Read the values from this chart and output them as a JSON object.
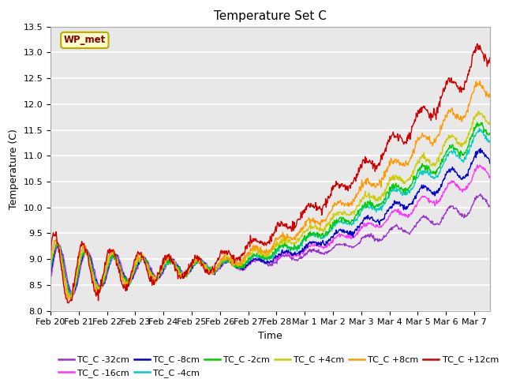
{
  "title": "Temperature Set C",
  "xlabel": "Time",
  "ylabel": "Temperature (C)",
  "ylim": [
    8.0,
    13.5
  ],
  "yticks": [
    8.0,
    8.5,
    9.0,
    9.5,
    10.0,
    10.5,
    11.0,
    11.5,
    12.0,
    12.5,
    13.0,
    13.5
  ],
  "background_color": "#e8e8e8",
  "wp_met_box_color": "#ffffcc",
  "wp_met_text_color": "#800000",
  "series_colors": {
    "TC_C -32cm": "#9933cc",
    "TC_C -16cm": "#ff33ff",
    "TC_C -8cm": "#0000cc",
    "TC_C -4cm": "#00cccc",
    "TC_C -2cm": "#00cc00",
    "TC_C +4cm": "#cccc00",
    "TC_C +8cm": "#ff9900",
    "TC_C +12cm": "#cc0000"
  }
}
